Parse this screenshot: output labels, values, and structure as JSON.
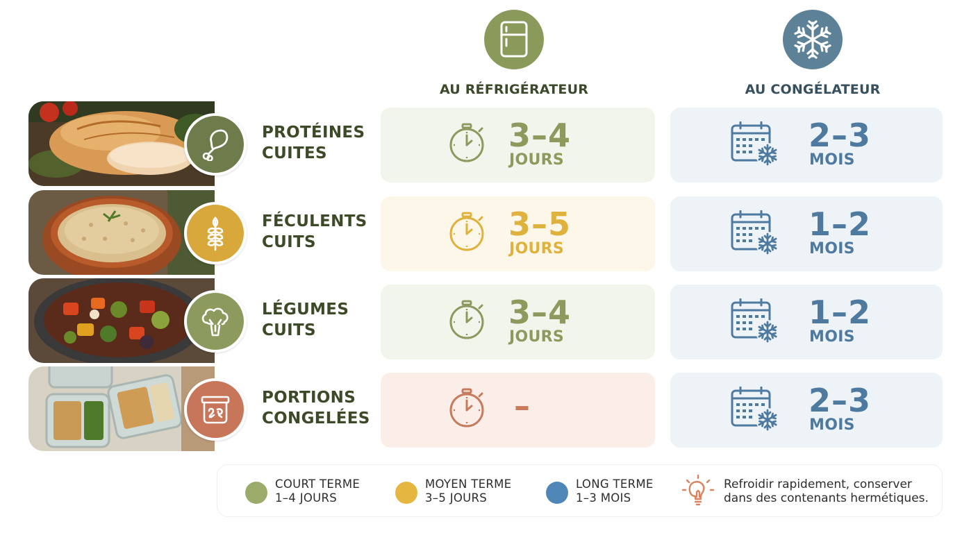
{
  "columns": {
    "fridge": {
      "label": "AU RÉFRIGÉRATEUR",
      "icon": "fridge-icon",
      "color": "#8a9a5b"
    },
    "freezer": {
      "label": "AU CONGÉLATEUR",
      "icon": "snowflake-icon",
      "color": "#5d8197"
    }
  },
  "rows": [
    {
      "line1": "PROTÉINES",
      "line2": "CUITES",
      "icon": "chicken-leg-icon",
      "badge_color": "#6e7b4a",
      "fridge": {
        "value": "3–4",
        "unit": "JOURS"
      },
      "freezer": {
        "value": "2–3",
        "unit": "MOIS"
      }
    },
    {
      "line1": "FÉCULENTS",
      "line2": "CUITS",
      "icon": "wheat-icon",
      "badge_color": "#d9a83a",
      "fridge": {
        "value": "3–5",
        "unit": "JOURS"
      },
      "freezer": {
        "value": "1–2",
        "unit": "MOIS"
      }
    },
    {
      "line1": "LÉGUMES",
      "line2": "CUITS",
      "icon": "broccoli-icon",
      "badge_color": "#8d9a5e",
      "fridge": {
        "value": "3–4",
        "unit": "JOURS"
      },
      "freezer": {
        "value": "1–2",
        "unit": "MOIS"
      }
    },
    {
      "line1": "PORTIONS",
      "line2": "CONGELÉES",
      "icon": "container-icon",
      "badge_color": "#c7765a",
      "fridge": {
        "value": "–",
        "unit": ""
      },
      "freezer": {
        "value": "2–3",
        "unit": "MOIS"
      }
    }
  ],
  "legend": {
    "short": {
      "line1": "COURT TERME",
      "line2": "1–4 JOURS",
      "color": "#9aab6a"
    },
    "medium": {
      "line1": "MOYEN TERME",
      "line2": "3–5 JOURS",
      "color": "#e5b740"
    },
    "long": {
      "line1": "LONG TERME",
      "line2": "1–3 MOIS",
      "color": "#4f86b8"
    },
    "tip": {
      "line1": "Refroidir rapidement, conserver",
      "line2": "dans des contenants hermétiques.",
      "icon": "lightbulb-icon"
    }
  }
}
